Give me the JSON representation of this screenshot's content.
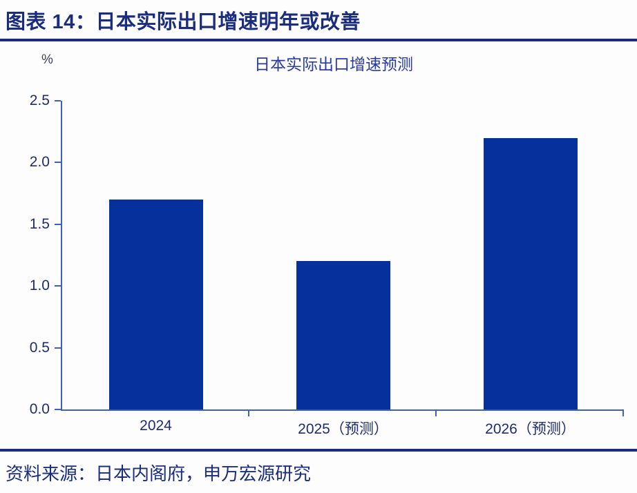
{
  "figure": {
    "header": "图表 14：日本实际出口增速明年或改善"
  },
  "chart_data": {
    "type": "bar",
    "title": "日本实际出口增速预测",
    "unit_label": "%",
    "categories": [
      "2024",
      "2025（预测）",
      "2026（预测）"
    ],
    "values": [
      1.7,
      1.2,
      2.2
    ],
    "ylim": [
      0,
      2.5
    ],
    "yticks": [
      "0.0",
      "0.5",
      "1.0",
      "1.5",
      "2.0",
      "2.5"
    ],
    "grid": "off",
    "legend": "none",
    "bar_color": "#06309b",
    "axis_color": "#3f5ec2",
    "tick_label_color": "#1d2c70"
  },
  "footer": {
    "source": "资料来源：日本内阁府，申万宏源研究"
  },
  "colors": {
    "brand_navy": "#1a2c80",
    "title_blue": "#2839a6"
  }
}
